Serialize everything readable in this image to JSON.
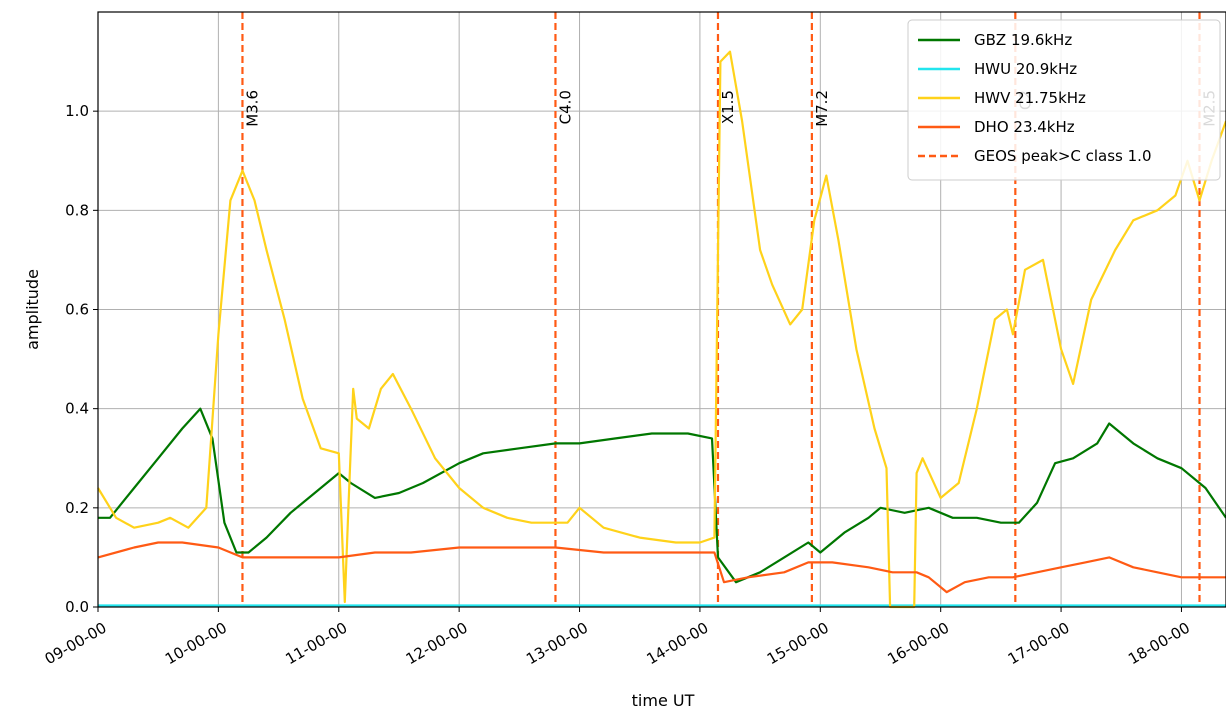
{
  "chart_data": {
    "type": "line",
    "title": "",
    "xlabel": "time UT",
    "ylabel": "amplitude",
    "xlim": [
      9.0,
      18.37
    ],
    "ylim": [
      0.0,
      1.2
    ],
    "grid": true,
    "legend_position": "top-right",
    "x_ticks": [
      9,
      10,
      11,
      12,
      13,
      14,
      15,
      16,
      17,
      18
    ],
    "x_tick_labels": [
      "09-00-00",
      "10-00-00",
      "11-00-00",
      "12-00-00",
      "13-00-00",
      "14-00-00",
      "15-00-00",
      "16-00-00",
      "17-00-00",
      "18-00-00"
    ],
    "y_ticks": [
      0.0,
      0.2,
      0.4,
      0.6,
      0.8,
      1.0
    ],
    "y_tick_labels": [
      "0.0",
      "0.2",
      "0.4",
      "0.6",
      "0.8",
      "1.0"
    ],
    "series": [
      {
        "name": "GBZ 19.6kHz",
        "color": "#007700",
        "style": "solid",
        "x": [
          9.0,
          9.1,
          9.3,
          9.5,
          9.7,
          9.85,
          9.95,
          10.05,
          10.15,
          10.25,
          10.4,
          10.6,
          10.8,
          11.0,
          11.1,
          11.3,
          11.5,
          11.7,
          12.0,
          12.2,
          12.5,
          12.8,
          13.0,
          13.3,
          13.6,
          13.9,
          14.1,
          14.15,
          14.3,
          14.5,
          14.7,
          14.9,
          15.0,
          15.2,
          15.4,
          15.5,
          15.7,
          15.9,
          16.1,
          16.3,
          16.5,
          16.65,
          16.8,
          16.95,
          17.1,
          17.3,
          17.4,
          17.6,
          17.8,
          18.0,
          18.2,
          18.37
        ],
        "y": [
          0.18,
          0.18,
          0.24,
          0.3,
          0.36,
          0.4,
          0.34,
          0.17,
          0.11,
          0.11,
          0.14,
          0.19,
          0.23,
          0.27,
          0.25,
          0.22,
          0.23,
          0.25,
          0.29,
          0.31,
          0.32,
          0.33,
          0.33,
          0.34,
          0.35,
          0.35,
          0.34,
          0.1,
          0.05,
          0.07,
          0.1,
          0.13,
          0.11,
          0.15,
          0.18,
          0.2,
          0.19,
          0.2,
          0.18,
          0.18,
          0.17,
          0.17,
          0.21,
          0.29,
          0.3,
          0.33,
          0.37,
          0.33,
          0.3,
          0.28,
          0.24,
          0.18
        ]
      },
      {
        "name": "HWU 20.9kHz",
        "color": "#22e5ee",
        "style": "solid",
        "x": [
          9.0,
          18.37
        ],
        "y": [
          0.003,
          0.003
        ]
      },
      {
        "name": "HWV 21.75kHz",
        "color": "#ffd21a",
        "style": "solid",
        "x": [
          9.0,
          9.15,
          9.3,
          9.5,
          9.6,
          9.75,
          9.9,
          10.0,
          10.1,
          10.2,
          10.3,
          10.4,
          10.55,
          10.7,
          10.85,
          11.0,
          11.05,
          11.08,
          11.12,
          11.15,
          11.25,
          11.35,
          11.45,
          11.6,
          11.8,
          12.0,
          12.2,
          12.4,
          12.6,
          12.8,
          12.9,
          13.0,
          13.2,
          13.5,
          13.8,
          14.0,
          14.12,
          14.17,
          14.25,
          14.35,
          14.5,
          14.6,
          14.75,
          14.85,
          14.95,
          15.05,
          15.15,
          15.3,
          15.45,
          15.55,
          15.58,
          15.62,
          15.78,
          15.8,
          15.85,
          16.0,
          16.15,
          16.3,
          16.45,
          16.55,
          16.6,
          16.7,
          16.85,
          17.0,
          17.1,
          17.25,
          17.45,
          17.6,
          17.8,
          17.95,
          18.05,
          18.15,
          18.25,
          18.37
        ],
        "y": [
          0.24,
          0.18,
          0.16,
          0.17,
          0.18,
          0.16,
          0.2,
          0.55,
          0.82,
          0.88,
          0.82,
          0.72,
          0.58,
          0.42,
          0.32,
          0.31,
          0.01,
          0.2,
          0.44,
          0.38,
          0.36,
          0.44,
          0.47,
          0.4,
          0.3,
          0.24,
          0.2,
          0.18,
          0.17,
          0.17,
          0.17,
          0.2,
          0.16,
          0.14,
          0.13,
          0.13,
          0.14,
          1.1,
          1.12,
          0.98,
          0.72,
          0.65,
          0.57,
          0.6,
          0.78,
          0.87,
          0.74,
          0.52,
          0.36,
          0.28,
          0.0,
          0.0,
          0.0,
          0.27,
          0.3,
          0.22,
          0.25,
          0.4,
          0.58,
          0.6,
          0.55,
          0.68,
          0.7,
          0.52,
          0.45,
          0.62,
          0.72,
          0.78,
          0.8,
          0.83,
          0.9,
          0.82,
          0.9,
          0.98
        ]
      },
      {
        "name": "DHO 23.4kHz",
        "color": "#ff5a14",
        "style": "solid",
        "x": [
          9.0,
          9.3,
          9.5,
          9.7,
          10.0,
          10.2,
          10.5,
          10.8,
          11.0,
          11.3,
          11.6,
          12.0,
          12.4,
          12.8,
          13.2,
          13.6,
          14.0,
          14.12,
          14.2,
          14.4,
          14.7,
          14.9,
          15.1,
          15.4,
          15.6,
          15.8,
          15.9,
          16.05,
          16.2,
          16.4,
          16.6,
          16.8,
          17.0,
          17.2,
          17.4,
          17.6,
          17.8,
          18.0,
          18.2,
          18.37
        ],
        "y": [
          0.1,
          0.12,
          0.13,
          0.13,
          0.12,
          0.1,
          0.1,
          0.1,
          0.1,
          0.11,
          0.11,
          0.12,
          0.12,
          0.12,
          0.11,
          0.11,
          0.11,
          0.11,
          0.05,
          0.06,
          0.07,
          0.09,
          0.09,
          0.08,
          0.07,
          0.07,
          0.06,
          0.03,
          0.05,
          0.06,
          0.06,
          0.07,
          0.08,
          0.09,
          0.1,
          0.08,
          0.07,
          0.06,
          0.06,
          0.06
        ]
      }
    ],
    "reference_lines": {
      "name": "GEOS peak>C class 1.0",
      "color": "#ff5a14",
      "style": "dashed",
      "lines": [
        {
          "x": 10.2,
          "label": "M3.6"
        },
        {
          "x": 12.8,
          "label": "C4.0"
        },
        {
          "x": 14.15,
          "label": "X1.5"
        },
        {
          "x": 14.93,
          "label": "M7.2"
        },
        {
          "x": 16.62,
          "label": "C2"
        },
        {
          "x": 18.15,
          "label": "M2.5"
        }
      ]
    },
    "legend": [
      {
        "label": "GBZ 19.6kHz",
        "color": "#007700",
        "style": "solid"
      },
      {
        "label": "HWU 20.9kHz",
        "color": "#22e5ee",
        "style": "solid"
      },
      {
        "label": "HWV 21.75kHz",
        "color": "#ffd21a",
        "style": "solid"
      },
      {
        "label": "DHO 23.4kHz",
        "color": "#ff5a14",
        "style": "solid"
      },
      {
        "label": "GEOS peak>C class 1.0",
        "color": "#ff5a14",
        "style": "dashed"
      }
    ]
  }
}
